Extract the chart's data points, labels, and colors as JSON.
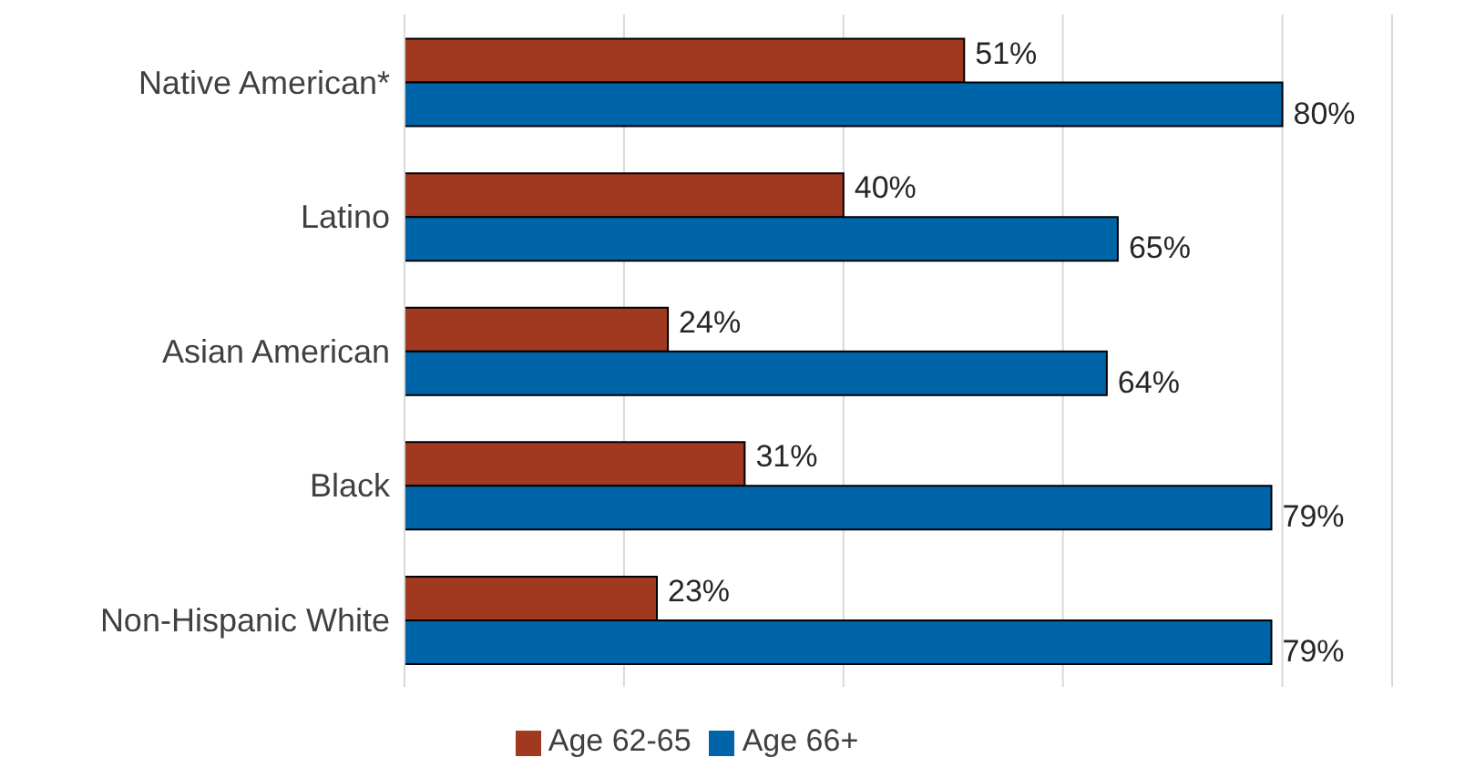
{
  "chart_data": {
    "type": "bar",
    "orientation": "horizontal",
    "categories": [
      "Native American*",
      "Latino",
      "Asian American",
      "Black",
      "Non-Hispanic White"
    ],
    "series": [
      {
        "name": "Age 62-65",
        "color": "#a0391f",
        "values": [
          51,
          40,
          24,
          31,
          23
        ],
        "value_labels": [
          "51%",
          "40%",
          "24%",
          "31%",
          "23%"
        ]
      },
      {
        "name": "Age 66+",
        "color": "#0064a8",
        "values": [
          80,
          65,
          64,
          79,
          79
        ],
        "value_labels": [
          "80%",
          "65%",
          "64%",
          "79%",
          "79%"
        ]
      }
    ],
    "relative": false,
    "xlim": [
      0,
      90
    ],
    "xticks": [
      {
        "value": 0,
        "label": null
      },
      {
        "value": 20,
        "label": null
      },
      {
        "value": 40,
        "label": null
      },
      {
        "value": 60,
        "label": null
      },
      {
        "value": 80,
        "label": null
      }
    ],
    "grid": "x",
    "legend": "bottom",
    "tick_labels": "y"
  }
}
